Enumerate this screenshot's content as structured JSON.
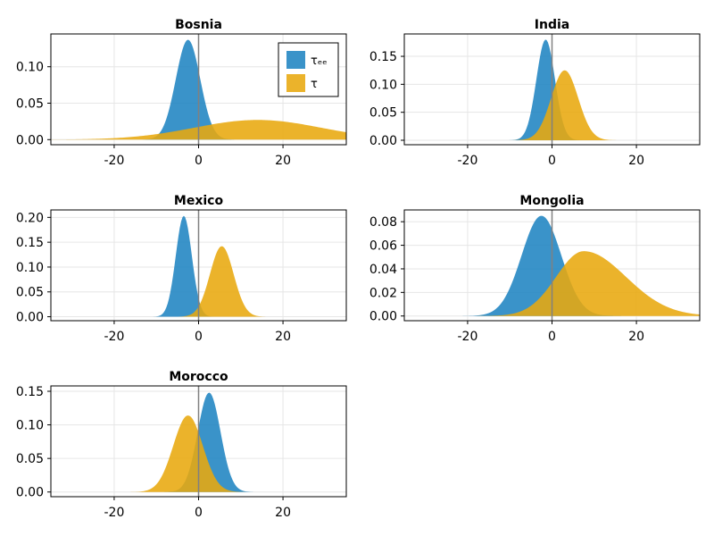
{
  "colors": {
    "tau_ee": "#1f84c1",
    "tau": "#e8a80e",
    "frame": "#000000",
    "grid": "#e6e6e6",
    "zero_line": "#808080"
  },
  "legend": {
    "entries": [
      {
        "label": "τₑₑ",
        "color": "#1f84c1"
      },
      {
        "label": "τ",
        "color": "#e8a80e"
      }
    ],
    "placement": "top-right of first panel"
  },
  "chart_data": [
    {
      "type": "area",
      "title": "Bosnia",
      "xlim": [
        -35,
        35
      ],
      "ylim": [
        -0.007,
        0.145
      ],
      "x_ticks": [
        -20,
        0,
        20
      ],
      "y_ticks": [
        0.0,
        0.05,
        0.1
      ],
      "y_tick_labels": [
        "0.00",
        "0.05",
        "0.10"
      ],
      "vline_x": 0,
      "grid": true,
      "series": [
        {
          "name": "τₑₑ",
          "distribution": "normal",
          "mean": -2.5,
          "sd": 2.9,
          "peak": 0.137
        },
        {
          "name": "τ",
          "distribution": "normal",
          "mean": 14,
          "sd": 15,
          "peak": 0.027
        }
      ]
    },
    {
      "type": "area",
      "title": "India",
      "xlim": [
        -35,
        35
      ],
      "ylim": [
        -0.008,
        0.19
      ],
      "x_ticks": [
        -20,
        0,
        20
      ],
      "y_ticks": [
        0.0,
        0.05,
        0.1,
        0.15
      ],
      "y_tick_labels": [
        "0.00",
        "0.05",
        "0.10",
        "0.15"
      ],
      "vline_x": 0,
      "grid": true,
      "series": [
        {
          "name": "τₑₑ",
          "distribution": "normal",
          "mean": -1.5,
          "sd": 2.2,
          "peak": 0.18
        },
        {
          "name": "τ",
          "distribution": "normal",
          "mean": 3,
          "sd": 3.2,
          "peak": 0.125
        }
      ]
    },
    {
      "type": "area",
      "title": "Mexico",
      "xlim": [
        -35,
        35
      ],
      "ylim": [
        -0.008,
        0.215
      ],
      "x_ticks": [
        -20,
        0,
        20
      ],
      "y_ticks": [
        0.0,
        0.05,
        0.1,
        0.15,
        0.2
      ],
      "y_tick_labels": [
        "0.00",
        "0.05",
        "0.10",
        "0.15",
        "0.20"
      ],
      "vline_x": 0,
      "grid": true,
      "series": [
        {
          "name": "τₑₑ",
          "distribution": "normal",
          "mean": -3.5,
          "sd": 1.9,
          "peak": 0.203
        },
        {
          "name": "τ",
          "distribution": "normal",
          "mean": 5.5,
          "sd": 2.8,
          "peak": 0.142
        }
      ]
    },
    {
      "type": "area",
      "title": "Mongolia",
      "xlim": [
        -35,
        35
      ],
      "ylim": [
        -0.004,
        0.09
      ],
      "x_ticks": [
        -20,
        0,
        20
      ],
      "y_ticks": [
        0.0,
        0.02,
        0.04,
        0.06,
        0.08
      ],
      "y_tick_labels": [
        "0.00",
        "0.02",
        "0.04",
        "0.06",
        "0.08"
      ],
      "vline_x": 0,
      "grid": true,
      "series": [
        {
          "name": "τₑₑ",
          "distribution": "normal",
          "mean": -2.5,
          "sd": 4.7,
          "peak": 0.085
        },
        {
          "name": "τ",
          "distribution": "skewed",
          "mean": 7.5,
          "sd_left": 6.5,
          "sd_right": 10,
          "peak": 0.055
        }
      ]
    },
    {
      "type": "area",
      "title": "Morocco",
      "xlim": [
        -35,
        35
      ],
      "ylim": [
        -0.007,
        0.158
      ],
      "x_ticks": [
        -20,
        0,
        20
      ],
      "y_ticks": [
        0.0,
        0.05,
        0.1,
        0.15
      ],
      "y_tick_labels": [
        "0.00",
        "0.05",
        "0.10",
        "0.15"
      ],
      "vline_x": 0,
      "grid": true,
      "series": [
        {
          "name": "τₑₑ",
          "distribution": "normal",
          "mean": 2.5,
          "sd": 2.7,
          "peak": 0.148
        },
        {
          "name": "τ",
          "distribution": "normal",
          "mean": -2.5,
          "sd": 3.5,
          "peak": 0.114
        }
      ]
    }
  ]
}
